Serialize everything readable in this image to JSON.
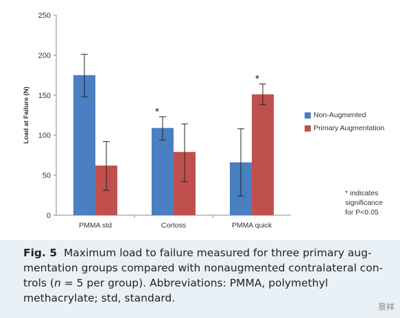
{
  "chart_data": {
    "type": "bar",
    "categories": [
      "PMMA std",
      "Cortoss",
      "PMMA quick"
    ],
    "series": [
      {
        "name": "Non-Augmented",
        "color": "#4a7fc1",
        "values": [
          175,
          109,
          66
        ],
        "err_low": [
          148,
          94,
          24
        ],
        "err_high": [
          201,
          123,
          108
        ]
      },
      {
        "name": "Primary Augmentation",
        "color": "#c0504d",
        "values": [
          62,
          79,
          151
        ],
        "err_low": [
          31,
          42,
          138
        ],
        "err_high": [
          92,
          114,
          164
        ]
      }
    ],
    "significance": [
      {
        "category": "Cortoss",
        "series": "Non-Augmented",
        "symbol": "*"
      },
      {
        "category": "PMMA quick",
        "series": "Primary Augmentation",
        "symbol": "*"
      }
    ],
    "ylabel": "Load at Failure (N)",
    "ylim": [
      0,
      250
    ],
    "yticks": [
      "0",
      "50",
      "100",
      "150",
      "200",
      "250"
    ],
    "legend_position": "right",
    "note_lines": [
      "* indicates",
      "significance",
      "for P<0.05"
    ]
  },
  "caption": {
    "label": "Fig. 5",
    "line1": "Maximum load to failure measured for three primary aug-",
    "line2": "mentation groups compared with nonaugmented contralateral con-",
    "line3_a": "trols (",
    "line3_n": "n",
    "line3_b": " = 5 per group). Abbreviations: PMMA, polymethyl",
    "line4": "methacrylate; std, standard."
  },
  "watermark": "景祥"
}
